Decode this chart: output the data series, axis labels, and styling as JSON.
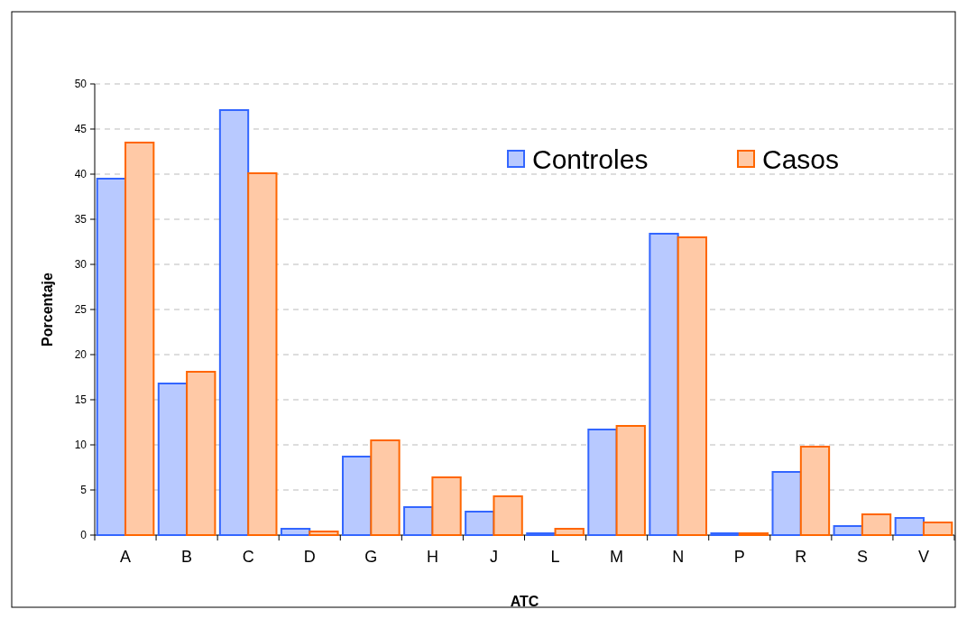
{
  "chart_data": {
    "type": "bar",
    "xlabel": "ATC",
    "ylabel": "Porcentaje",
    "categories": [
      "A",
      "B",
      "C",
      "D",
      "G",
      "H",
      "J",
      "L",
      "M",
      "N",
      "P",
      "R",
      "S",
      "V"
    ],
    "series": [
      {
        "name": "Controles",
        "color": "#3366ff",
        "values": [
          39.5,
          16.8,
          47.1,
          0.7,
          8.7,
          3.1,
          2.6,
          0.2,
          11.7,
          33.4,
          0.2,
          7.0,
          1.0,
          1.9
        ]
      },
      {
        "name": "Casos",
        "color": "#ff6600",
        "values": [
          43.5,
          18.1,
          40.1,
          0.4,
          10.5,
          6.4,
          4.3,
          0.7,
          12.1,
          33.0,
          0.2,
          9.8,
          2.3,
          1.4
        ]
      }
    ],
    "ylim": [
      0,
      50
    ],
    "yticks": [
      0,
      5,
      10,
      15,
      20,
      25,
      30,
      35,
      40,
      45,
      50
    ],
    "grid": "y",
    "legend": "top right"
  }
}
